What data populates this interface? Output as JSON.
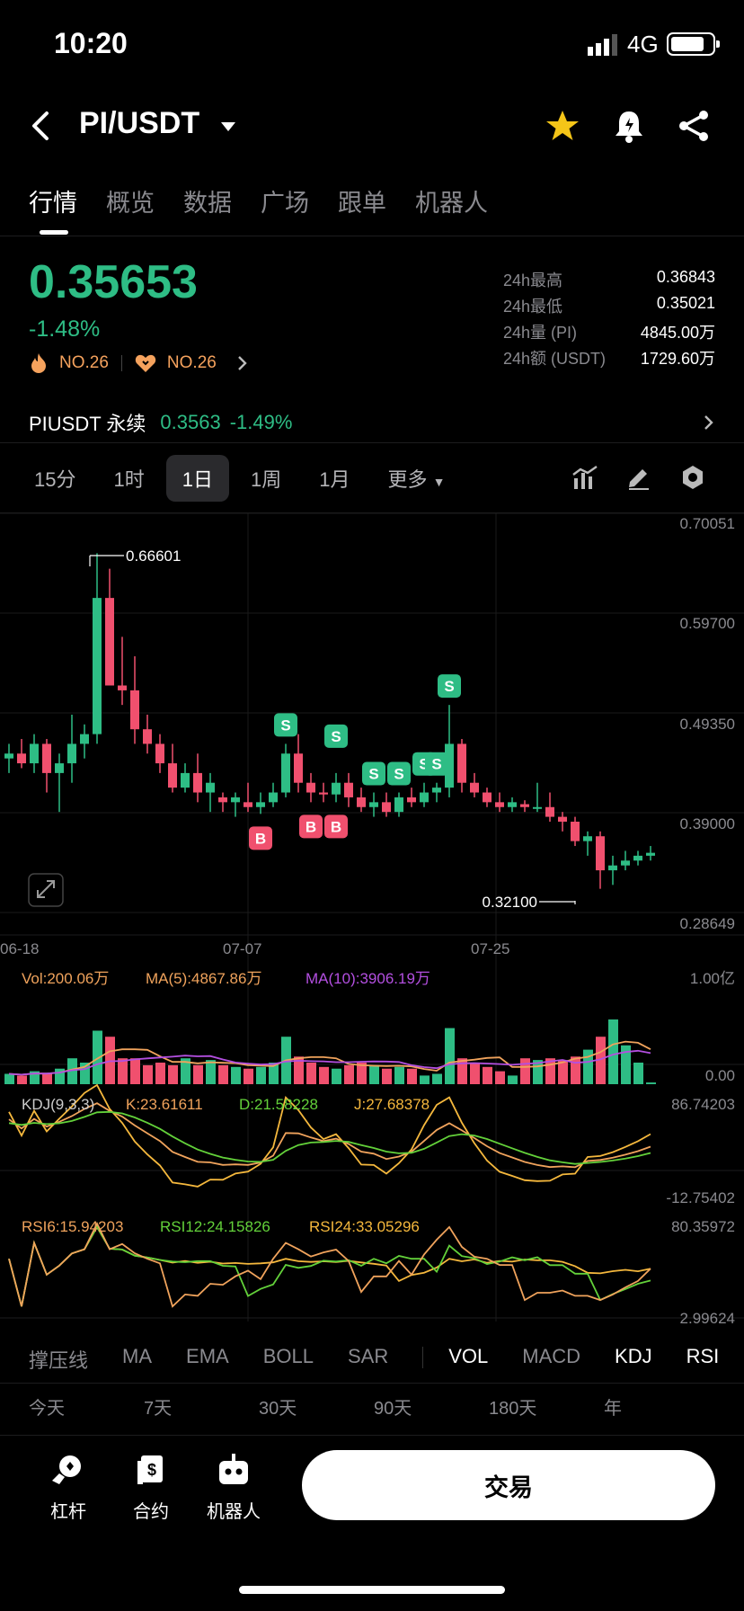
{
  "status": {
    "time": "10:20",
    "network": "4G"
  },
  "header": {
    "pair": "PI/USDT"
  },
  "tabs": [
    "行情",
    "概览",
    "数据",
    "广场",
    "跟单",
    "机器人"
  ],
  "ticker": {
    "last": "0.35653",
    "change": "-1.48%",
    "rank_hot": "NO.26",
    "rank_fav": "NO.26",
    "stats": [
      {
        "k": "24h最高",
        "v": "0.36843"
      },
      {
        "k": "24h最低",
        "v": "0.35021"
      },
      {
        "k": "24h量 (PI)",
        "v": "4845.00万"
      },
      {
        "k": "24h额 (USDT)",
        "v": "1729.60万"
      }
    ]
  },
  "perpetual": {
    "label": "PIUSDT 永续",
    "price": "0.3563",
    "change": "-1.49%"
  },
  "intervals": [
    "15分",
    "1时",
    "1日",
    "1周",
    "1月",
    "更多"
  ],
  "chart": {
    "price_axis": [
      "0.70051",
      "0.59700",
      "0.49350",
      "0.39000",
      "0.28649"
    ],
    "date_axis": [
      "06-18",
      "07-07",
      "07-25"
    ],
    "high_label": "0.66601",
    "low_label": "0.32100",
    "trade_markers": {
      "buy": "B",
      "sell": "S"
    },
    "vol": {
      "label": "Vol:200.06万",
      "ma5": "MA(5):4867.86万",
      "ma10": "MA(10):3906.19万",
      "top": "1.00亿",
      "bottom": "0.00"
    },
    "kdj": {
      "label": "KDJ(9,3,3)",
      "k": "K:23.61611",
      "d": "D:21.58228",
      "j": "J:27.68378",
      "top": "86.74203",
      "bottom": "-12.75402"
    },
    "rsi": {
      "r6": "RSI6:15.94203",
      "r12": "RSI12:24.15826",
      "r24": "RSI24:33.05296",
      "top": "80.35972",
      "bottom": "2.99624"
    },
    "colors": {
      "up": "#2ebd85",
      "down": "#f0506e",
      "ma5": "#f0a35c",
      "ma10": "#b34fe0",
      "d": "#63d13a"
    }
  },
  "chart_data": {
    "type": "candlestick",
    "ylim": [
      0.28649,
      0.70051
    ],
    "ohlc": [
      [
        0.455,
        0.47,
        0.44,
        0.46
      ],
      [
        0.46,
        0.475,
        0.445,
        0.45
      ],
      [
        0.45,
        0.48,
        0.44,
        0.47
      ],
      [
        0.47,
        0.475,
        0.42,
        0.44
      ],
      [
        0.44,
        0.46,
        0.4,
        0.45
      ],
      [
        0.45,
        0.5,
        0.43,
        0.47
      ],
      [
        0.47,
        0.49,
        0.455,
        0.48
      ],
      [
        0.48,
        0.666,
        0.47,
        0.62
      ],
      [
        0.62,
        0.65,
        0.53,
        0.53
      ],
      [
        0.53,
        0.58,
        0.51,
        0.525
      ],
      [
        0.525,
        0.56,
        0.47,
        0.485
      ],
      [
        0.485,
        0.5,
        0.46,
        0.47
      ],
      [
        0.47,
        0.48,
        0.44,
        0.45
      ],
      [
        0.45,
        0.47,
        0.42,
        0.425
      ],
      [
        0.425,
        0.45,
        0.42,
        0.44
      ],
      [
        0.44,
        0.46,
        0.41,
        0.42
      ],
      [
        0.42,
        0.44,
        0.4,
        0.43
      ],
      [
        0.415,
        0.42,
        0.4,
        0.41
      ],
      [
        0.41,
        0.42,
        0.395,
        0.415
      ],
      [
        0.41,
        0.43,
        0.4,
        0.405
      ],
      [
        0.405,
        0.42,
        0.398,
        0.41
      ],
      [
        0.41,
        0.43,
        0.405,
        0.42
      ],
      [
        0.42,
        0.47,
        0.415,
        0.46
      ],
      [
        0.46,
        0.48,
        0.42,
        0.43
      ],
      [
        0.43,
        0.44,
        0.41,
        0.42
      ],
      [
        0.42,
        0.43,
        0.41,
        0.418
      ],
      [
        0.418,
        0.44,
        0.41,
        0.43
      ],
      [
        0.43,
        0.44,
        0.405,
        0.415
      ],
      [
        0.415,
        0.425,
        0.4,
        0.405
      ],
      [
        0.405,
        0.42,
        0.395,
        0.41
      ],
      [
        0.41,
        0.42,
        0.395,
        0.4
      ],
      [
        0.4,
        0.42,
        0.395,
        0.415
      ],
      [
        0.415,
        0.425,
        0.405,
        0.41
      ],
      [
        0.41,
        0.43,
        0.405,
        0.42
      ],
      [
        0.42,
        0.43,
        0.41,
        0.425
      ],
      [
        0.425,
        0.51,
        0.415,
        0.47
      ],
      [
        0.47,
        0.475,
        0.42,
        0.43
      ],
      [
        0.43,
        0.44,
        0.415,
        0.42
      ],
      [
        0.42,
        0.425,
        0.405,
        0.41
      ],
      [
        0.41,
        0.42,
        0.4,
        0.405
      ],
      [
        0.405,
        0.415,
        0.4,
        0.41
      ],
      [
        0.408,
        0.412,
        0.4,
        0.405
      ],
      [
        0.405,
        0.43,
        0.4,
        0.405
      ],
      [
        0.405,
        0.42,
        0.39,
        0.395
      ],
      [
        0.395,
        0.4,
        0.38,
        0.39
      ],
      [
        0.39,
        0.395,
        0.365,
        0.37
      ],
      [
        0.37,
        0.38,
        0.355,
        0.375
      ],
      [
        0.375,
        0.38,
        0.321,
        0.34
      ],
      [
        0.34,
        0.355,
        0.325,
        0.345
      ],
      [
        0.345,
        0.36,
        0.34,
        0.35
      ],
      [
        0.35,
        0.36,
        0.345,
        0.355
      ],
      [
        0.355,
        0.365,
        0.35,
        0.358
      ]
    ],
    "volume": [
      0.12,
      0.1,
      0.15,
      0.12,
      0.18,
      0.3,
      0.25,
      0.62,
      0.55,
      0.3,
      0.3,
      0.22,
      0.25,
      0.22,
      0.3,
      0.22,
      0.28,
      0.22,
      0.2,
      0.18,
      0.2,
      0.25,
      0.55,
      0.32,
      0.25,
      0.2,
      0.18,
      0.22,
      0.25,
      0.22,
      0.18,
      0.2,
      0.18,
      0.1,
      0.12,
      0.65,
      0.3,
      0.25,
      0.2,
      0.15,
      0.1,
      0.3,
      0.28,
      0.3,
      0.28,
      0.32,
      0.4,
      0.55,
      0.75,
      0.45,
      0.25,
      0.02
    ],
    "buys": [
      20,
      24,
      26
    ],
    "sells": [
      22,
      26,
      29,
      31,
      33,
      34,
      35
    ]
  }
}
